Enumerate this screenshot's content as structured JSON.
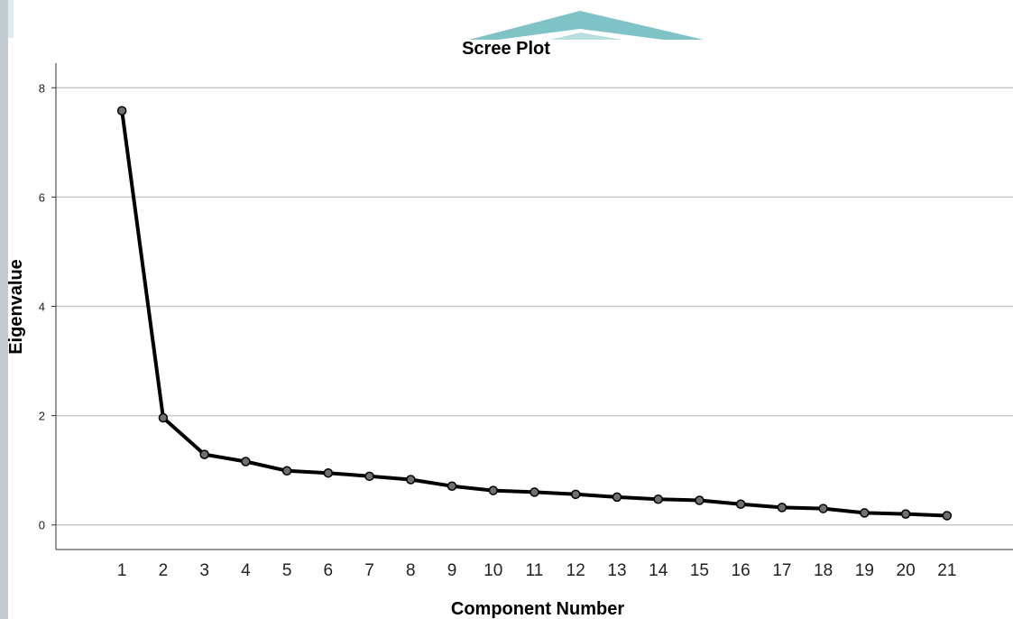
{
  "chart_data": {
    "type": "line",
    "title": "Scree Plot",
    "xlabel": "Component Number",
    "ylabel": "Eigenvalue",
    "x": [
      1,
      2,
      3,
      4,
      5,
      6,
      7,
      8,
      9,
      10,
      11,
      12,
      13,
      14,
      15,
      16,
      17,
      18,
      19,
      20,
      21
    ],
    "values": [
      7.58,
      1.96,
      1.29,
      1.16,
      0.99,
      0.95,
      0.89,
      0.83,
      0.71,
      0.63,
      0.6,
      0.56,
      0.51,
      0.47,
      0.45,
      0.38,
      0.32,
      0.3,
      0.22,
      0.2,
      0.17
    ],
    "xticks": [
      "1",
      "2",
      "3",
      "4",
      "5",
      "6",
      "7",
      "8",
      "9",
      "10",
      "11",
      "12",
      "13",
      "14",
      "15",
      "16",
      "17",
      "18",
      "19",
      "20",
      "21"
    ],
    "yticks": [
      "0",
      "2",
      "4",
      "6",
      "8"
    ],
    "ylim": [
      -0.45,
      8.45
    ],
    "xlim": [
      -0.6,
      22.6
    ],
    "grid": true,
    "line_color": "#000000",
    "marker_color": "#707070",
    "grid_color": "#c8c8c8",
    "decor_color": "#7fc3c6"
  }
}
